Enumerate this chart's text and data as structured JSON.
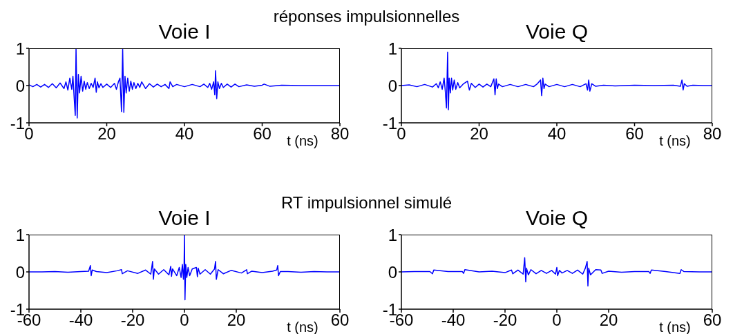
{
  "chart_data": [
    {
      "type": "line",
      "subtitle": "réponses impulsionnelles",
      "title": "Voie I",
      "xlabel": "t (ns)",
      "xlim": [
        0,
        80
      ],
      "xticks": [
        0,
        20,
        40,
        60,
        80
      ],
      "ylim": [
        -1,
        1
      ],
      "yticks": [
        -1,
        0,
        1
      ],
      "series": [
        {
          "color": "#0000ff",
          "x": [
            0,
            1,
            2,
            3,
            4,
            5,
            6,
            7,
            8,
            9,
            9.5,
            10,
            10.5,
            11,
            11.3,
            11.6,
            11.9,
            12.1,
            12.4,
            12.7,
            13,
            13.4,
            13.8,
            14.2,
            14.6,
            15,
            15.5,
            16,
            16.5,
            17,
            17.3,
            17.6,
            18,
            18.5,
            19,
            20,
            21,
            22,
            22.5,
            23,
            23.4,
            23.8,
            24.1,
            24.4,
            24.7,
            25,
            25.4,
            25.8,
            26.2,
            26.6,
            27,
            27.5,
            28,
            28.5,
            29,
            30,
            31,
            32,
            33,
            34,
            35,
            36,
            36.3,
            37,
            38,
            40,
            42,
            44,
            45,
            46,
            46.5,
            47,
            47.5,
            47.8,
            48,
            48.3,
            48.6,
            49,
            49.5,
            50,
            51,
            52,
            53,
            54,
            56,
            58,
            60,
            60.5,
            62,
            65,
            70,
            75,
            80
          ],
          "values": [
            0.02,
            -0.03,
            0.03,
            -0.04,
            0.03,
            -0.05,
            0.05,
            -0.06,
            0.07,
            -0.08,
            0.1,
            -0.12,
            0.2,
            -0.1,
            0.25,
            -0.3,
            -0.8,
            1,
            -0.87,
            0.3,
            -0.2,
            0.25,
            -0.15,
            0.12,
            -0.1,
            0.08,
            -0.08,
            0.06,
            -0.05,
            0.2,
            -0.18,
            0.1,
            -0.06,
            0.05,
            -0.05,
            0.04,
            -0.05,
            0.06,
            -0.1,
            0.1,
            0.2,
            -0.7,
            0.97,
            -0.72,
            0.25,
            -0.2,
            0.2,
            -0.15,
            0.12,
            -0.1,
            0.08,
            -0.08,
            0.06,
            -0.05,
            0.1,
            -0.08,
            0.05,
            -0.04,
            0.04,
            -0.03,
            0.03,
            -0.08,
            0.1,
            -0.03,
            0.03,
            -0.03,
            0.03,
            -0.03,
            0.04,
            -0.05,
            0.06,
            -0.1,
            0.1,
            -0.25,
            0.4,
            -0.35,
            0.1,
            -0.08,
            0.06,
            -0.05,
            0.04,
            -0.04,
            0.04,
            -0.03,
            0.02,
            -0.02,
            0.01,
            0.04,
            -0.02,
            0.01,
            0,
            0,
            0
          ]
        }
      ]
    },
    {
      "type": "line",
      "title": "Voie Q",
      "xlabel": "t (ns)",
      "xlim": [
        0,
        80
      ],
      "xticks": [
        0,
        20,
        40,
        60,
        80
      ],
      "ylim": [
        -1,
        1
      ],
      "yticks": [
        -1,
        0,
        1
      ],
      "series": [
        {
          "color": "#0000ff",
          "x": [
            0,
            2,
            4,
            6,
            8,
            9,
            9.5,
            10,
            10.5,
            11,
            11.3,
            11.6,
            11.9,
            12.1,
            12.3,
            12.6,
            12.9,
            13.2,
            13.6,
            14,
            14.5,
            15,
            16,
            17,
            17.5,
            18,
            19,
            20,
            21,
            22,
            23,
            23.8,
            24.1,
            24.4,
            24.7,
            25,
            26,
            28,
            30,
            32,
            34,
            35,
            35.8,
            36.1,
            36.4,
            36.7,
            37,
            38,
            40,
            42,
            44,
            46,
            47.5,
            47.9,
            48.2,
            48.5,
            49,
            50,
            52,
            55,
            60,
            65,
            70,
            71.8,
            72.2,
            72.5,
            72.8,
            73.5,
            75,
            78,
            80
          ],
          "values": [
            0,
            0.02,
            -0.03,
            0.03,
            -0.04,
            0.05,
            -0.06,
            0.1,
            -0.1,
            0.2,
            -0.15,
            -0.6,
            0.9,
            -0.65,
            0.2,
            -0.2,
            0.2,
            -0.12,
            0.15,
            -0.1,
            0.08,
            -0.06,
            0.05,
            0.12,
            -0.12,
            0.06,
            -0.05,
            0.04,
            -0.04,
            0.04,
            -0.03,
            0.18,
            -0.25,
            0.18,
            -0.08,
            0.04,
            -0.03,
            0.03,
            -0.03,
            0.03,
            -0.03,
            0.05,
            0.15,
            -0.27,
            0.2,
            -0.08,
            0.04,
            -0.03,
            0.03,
            -0.03,
            0.03,
            -0.03,
            0.05,
            -0.12,
            0.15,
            -0.15,
            0.05,
            -0.02,
            0.01,
            -0.01,
            0.01,
            0,
            0.01,
            -0.02,
            0.15,
            -0.12,
            0.05,
            -0.02,
            0.01,
            0,
            0
          ]
        }
      ]
    },
    {
      "type": "line",
      "subtitle": "RT impulsionnel simulé",
      "title": "Voie I",
      "xlabel": "t (ns)",
      "xlim": [
        -60,
        60
      ],
      "xticks": [
        -60,
        -40,
        -20,
        0,
        20,
        60
      ],
      "ylim": [
        -1,
        1
      ],
      "yticks": [
        -1,
        0,
        1
      ],
      "series": [
        {
          "color": "#0000ff",
          "x": [
            -60,
            -55,
            -50,
            -45,
            -40,
            -37,
            -36.3,
            -36,
            -35.6,
            -34,
            -30,
            -26,
            -24.3,
            -24,
            -22,
            -18,
            -15,
            -13,
            -12.3,
            -12,
            -11.6,
            -10,
            -8,
            -6,
            -5.3,
            -5,
            -4.6,
            -3,
            -2,
            -1.3,
            -0.8,
            -0.4,
            -0.15,
            0,
            0.2,
            0.5,
            0.9,
            1.4,
            2,
            3,
            4.6,
            5,
            5.3,
            6,
            8,
            10,
            11.6,
            12,
            12.3,
            13,
            15,
            18,
            22,
            24,
            24.3,
            26,
            30,
            34,
            35.6,
            36,
            36.3,
            37,
            40,
            45,
            50,
            55,
            60
          ],
          "values": [
            0,
            0,
            0.01,
            -0.01,
            0.01,
            0.02,
            0.17,
            -0.1,
            0.05,
            0.01,
            -0.02,
            0.03,
            0.06,
            -0.05,
            0.03,
            -0.04,
            0.05,
            -0.06,
            0.28,
            -0.2,
            0.08,
            -0.06,
            0.06,
            -0.08,
            0.15,
            -0.12,
            0.08,
            -0.1,
            0.12,
            -0.15,
            0.2,
            -0.2,
            0.15,
            1,
            -0.75,
            0.2,
            -0.15,
            0.12,
            -0.1,
            0.08,
            0.12,
            -0.13,
            0.1,
            -0.06,
            0.06,
            -0.06,
            0.08,
            0.28,
            -0.2,
            0.06,
            -0.05,
            0.04,
            -0.03,
            0.06,
            -0.05,
            0.02,
            -0.02,
            0.02,
            0.05,
            0.17,
            -0.1,
            0.01,
            0.01,
            -0.01,
            0.01,
            0,
            0
          ]
        }
      ]
    },
    {
      "type": "line",
      "title": "Voie Q",
      "xlabel": "t (ns)",
      "xlim": [
        -60,
        60
      ],
      "xticks": [
        -60,
        -40,
        -20,
        0,
        20,
        60
      ],
      "ylim": [
        -1,
        1
      ],
      "yticks": [
        -1,
        0,
        1
      ],
      "series": [
        {
          "color": "#0000ff",
          "x": [
            -60,
            -55,
            -49,
            -48,
            -47.5,
            -42,
            -36.5,
            -36,
            -35.5,
            -30,
            -25,
            -20,
            -17.5,
            -17,
            -15,
            -13,
            -12.4,
            -12,
            -11.7,
            -11,
            -10,
            -8,
            -6,
            -4,
            -2,
            -0.5,
            0,
            0.3,
            1,
            2,
            4,
            6,
            8,
            10,
            11,
            11.7,
            12,
            12.3,
            13,
            15,
            17,
            17.5,
            20,
            25,
            30,
            35.5,
            36,
            36.5,
            42,
            47.5,
            48,
            49,
            55,
            60
          ],
          "values": [
            0,
            0.01,
            0.01,
            -0.05,
            0.05,
            0.01,
            0.01,
            -0.04,
            0.06,
            0,
            0.02,
            -0.02,
            0.05,
            -0.05,
            0.05,
            -0.06,
            0.38,
            -0.27,
            0.1,
            -0.08,
            0.06,
            -0.05,
            0.04,
            -0.04,
            0.04,
            -0.06,
            0.12,
            -0.1,
            0.04,
            -0.03,
            0.04,
            -0.04,
            0.05,
            -0.06,
            0.1,
            0.28,
            -0.38,
            0.1,
            -0.08,
            0.06,
            0.05,
            -0.04,
            0.02,
            -0.01,
            0.01,
            0.01,
            -0.04,
            0.05,
            0.01,
            -0.04,
            0.06,
            0.01,
            0,
            0
          ]
        }
      ]
    }
  ]
}
